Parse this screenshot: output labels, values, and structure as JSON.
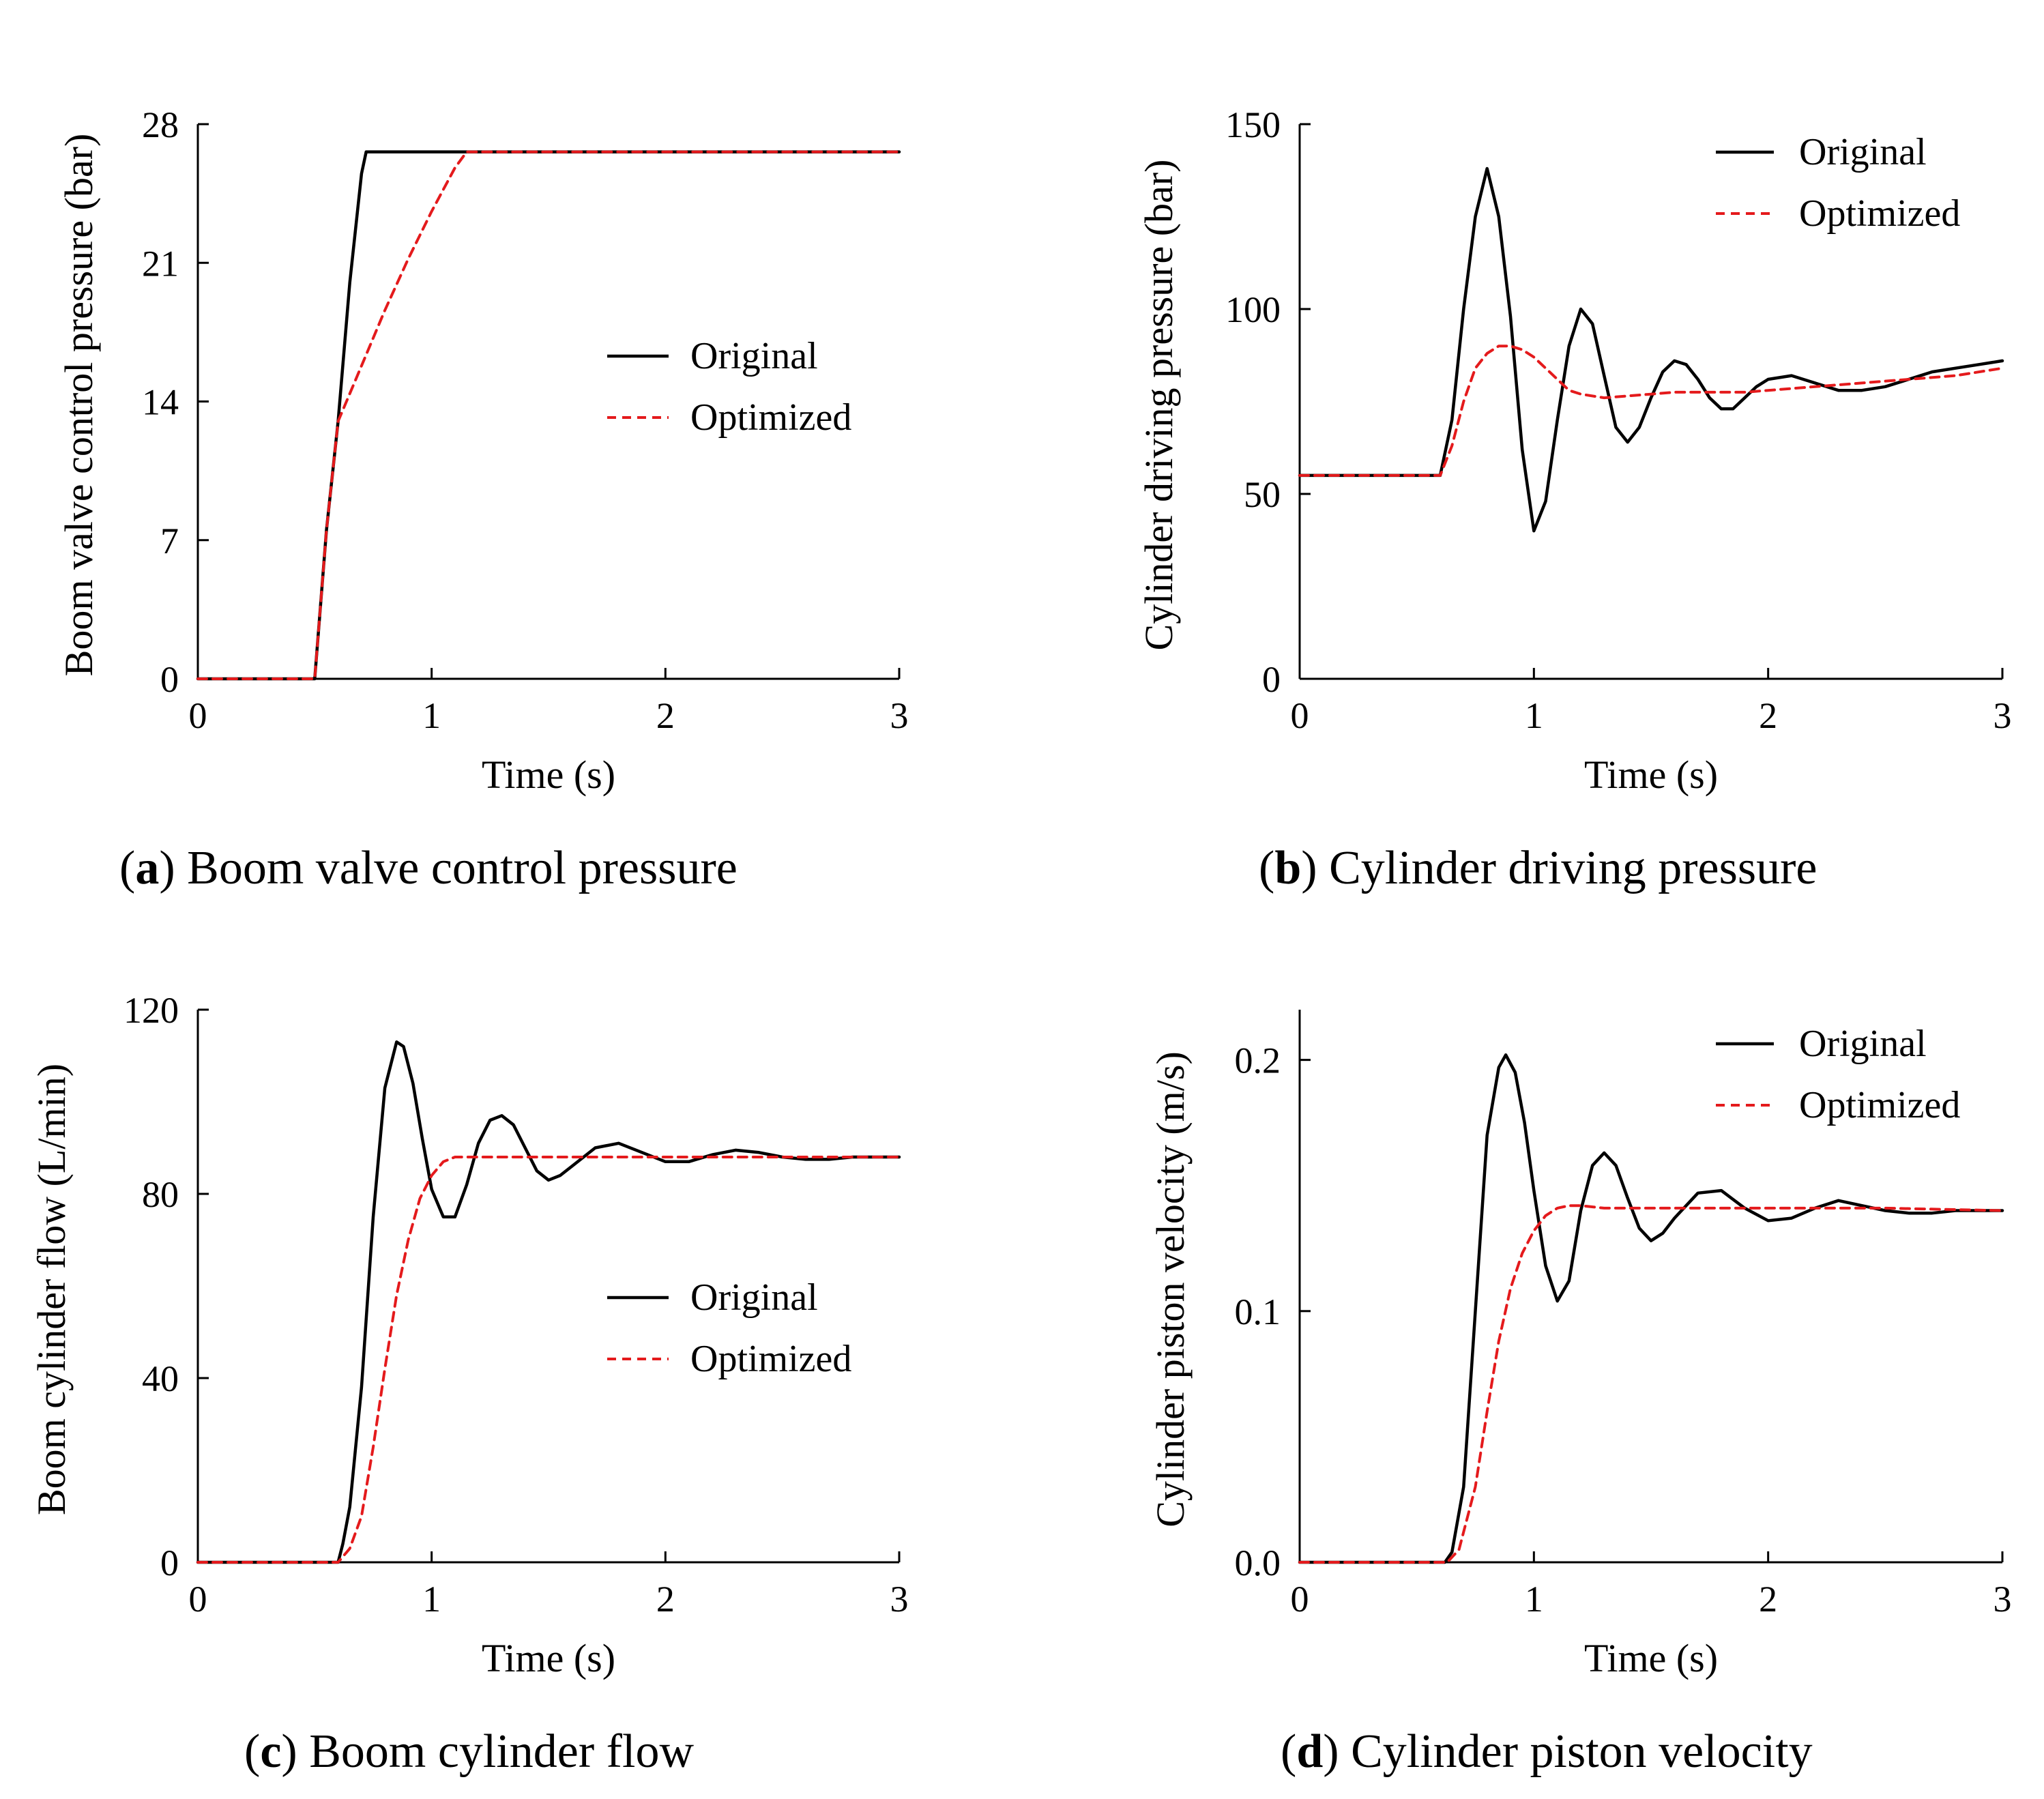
{
  "legend": {
    "original_label": "Original",
    "optimized_label": "Optimized",
    "original_color": "#000000",
    "optimized_color": "#e41a1c"
  },
  "chart_data": [
    {
      "id": "a",
      "type": "line",
      "caption_letter": "a",
      "caption_text": " Boom valve control pressure",
      "xlabel": "Time (s)",
      "ylabel": "Boom valve control pressure (bar)",
      "xlim": [
        0,
        3
      ],
      "ylim": [
        0,
        28
      ],
      "xticks": [
        0,
        1,
        2,
        3
      ],
      "yticks": [
        0,
        7,
        14,
        21,
        28
      ],
      "legend_position": "center-right",
      "series": [
        {
          "name": "Original",
          "x": [
            0,
            0.5,
            0.52,
            0.55,
            0.6,
            0.65,
            0.7,
            0.72,
            0.75,
            3
          ],
          "y": [
            0,
            0,
            3,
            7.5,
            13,
            20,
            25.5,
            26.6,
            26.6,
            26.6
          ]
        },
        {
          "name": "Optimized",
          "x": [
            0,
            0.5,
            0.52,
            0.55,
            0.6,
            0.7,
            0.8,
            0.9,
            1.0,
            1.1,
            1.15,
            1.2,
            3
          ],
          "y": [
            0,
            0,
            3,
            7.5,
            13,
            15.8,
            18.6,
            21.2,
            23.6,
            25.8,
            26.6,
            26.6,
            26.6
          ]
        }
      ]
    },
    {
      "id": "b",
      "type": "line",
      "caption_letter": "b",
      "caption_text": " Cylinder driving pressure",
      "xlabel": "Time (s)",
      "ylabel": "Cylinder driving pressure (bar)",
      "xlim": [
        0,
        3
      ],
      "ylim": [
        0,
        150
      ],
      "xticks": [
        0,
        1,
        2,
        3
      ],
      "yticks": [
        0,
        50,
        100,
        150
      ],
      "legend_position": "top-right",
      "series": [
        {
          "name": "Original",
          "x": [
            0,
            0.6,
            0.65,
            0.7,
            0.75,
            0.8,
            0.85,
            0.9,
            0.95,
            1.0,
            1.05,
            1.1,
            1.15,
            1.2,
            1.25,
            1.3,
            1.35,
            1.4,
            1.45,
            1.5,
            1.55,
            1.6,
            1.65,
            1.7,
            1.75,
            1.8,
            1.85,
            1.9,
            1.95,
            2.0,
            2.1,
            2.2,
            2.3,
            2.4,
            2.5,
            2.6,
            2.7,
            2.8,
            2.9,
            3.0
          ],
          "y": [
            55,
            55,
            70,
            100,
            125,
            138,
            125,
            98,
            62,
            40,
            48,
            70,
            90,
            100,
            96,
            82,
            68,
            64,
            68,
            76,
            83,
            86,
            85,
            81,
            76,
            73,
            73,
            76,
            79,
            81,
            82,
            80,
            78,
            78,
            79,
            81,
            83,
            84,
            85,
            86
          ]
        },
        {
          "name": "Optimized",
          "x": [
            0,
            0.6,
            0.65,
            0.7,
            0.75,
            0.8,
            0.85,
            0.9,
            0.95,
            1.0,
            1.05,
            1.1,
            1.15,
            1.2,
            1.3,
            1.4,
            1.5,
            1.6,
            1.7,
            1.8,
            1.9,
            2.0,
            2.2,
            2.4,
            2.6,
            2.8,
            3.0
          ],
          "y": [
            55,
            55,
            63,
            75,
            84,
            88,
            90,
            90,
            89,
            87,
            84,
            81,
            78,
            77,
            76,
            76.5,
            77,
            77.5,
            77.5,
            77.5,
            77.5,
            78,
            79,
            80,
            81,
            82,
            84
          ]
        }
      ]
    },
    {
      "id": "c",
      "type": "line",
      "caption_letter": "c",
      "caption_text": " Boom cylinder flow",
      "xlabel": "Time (s)",
      "ylabel": "Boom cylinder flow (L/min)",
      "xlim": [
        0,
        3
      ],
      "ylim": [
        0,
        120
      ],
      "xticks": [
        0,
        1,
        2,
        3
      ],
      "yticks": [
        0,
        40,
        80,
        120
      ],
      "legend_position": "center-right",
      "series": [
        {
          "name": "Original",
          "x": [
            0,
            0.6,
            0.62,
            0.65,
            0.7,
            0.75,
            0.8,
            0.85,
            0.88,
            0.92,
            0.96,
            1.0,
            1.05,
            1.1,
            1.15,
            1.2,
            1.25,
            1.3,
            1.35,
            1.4,
            1.45,
            1.5,
            1.55,
            1.6,
            1.7,
            1.8,
            1.9,
            2.0,
            2.1,
            2.2,
            2.3,
            2.4,
            2.5,
            2.6,
            2.7,
            2.8,
            2.9,
            3.0
          ],
          "y": [
            0,
            0,
            4,
            12,
            38,
            75,
            103,
            113,
            112,
            104,
            92,
            81,
            75,
            75,
            82,
            91,
            96,
            97,
            95,
            90,
            85,
            83,
            84,
            86,
            90,
            91,
            89,
            87,
            87,
            88.5,
            89.5,
            89,
            88,
            87.5,
            87.5,
            88,
            88,
            88
          ]
        },
        {
          "name": "Optimized",
          "x": [
            0,
            0.6,
            0.65,
            0.7,
            0.75,
            0.8,
            0.85,
            0.9,
            0.95,
            1.0,
            1.05,
            1.1,
            1.15,
            1.2,
            1.3,
            1.5,
            2.0,
            2.5,
            3.0
          ],
          "y": [
            0,
            0,
            3,
            10,
            25,
            42,
            58,
            70,
            79,
            84,
            87,
            88,
            88,
            88,
            88,
            88,
            88,
            88,
            88
          ]
        }
      ]
    },
    {
      "id": "d",
      "type": "line",
      "caption_letter": "d",
      "caption_text": " Cylinder piston velocity",
      "xlabel": "Time (s)",
      "ylabel": "Cylinder piston velocity (m/s)",
      "xlim": [
        0,
        3
      ],
      "ylim": [
        0,
        0.22
      ],
      "xticks": [
        0,
        1,
        2,
        3
      ],
      "ytick_values": [
        0.0,
        0.1,
        0.2
      ],
      "ytick_labels": [
        "0.0",
        "0.1",
        "0.2"
      ],
      "legend_position": "top-right",
      "series": [
        {
          "name": "Original",
          "x": [
            0,
            0.62,
            0.65,
            0.7,
            0.75,
            0.8,
            0.85,
            0.88,
            0.92,
            0.96,
            1.0,
            1.05,
            1.1,
            1.15,
            1.2,
            1.25,
            1.3,
            1.35,
            1.4,
            1.45,
            1.5,
            1.55,
            1.6,
            1.7,
            1.8,
            1.9,
            2.0,
            2.1,
            2.2,
            2.3,
            2.4,
            2.5,
            2.6,
            2.7,
            2.8,
            2.9,
            3.0
          ],
          "y": [
            0,
            0,
            0.004,
            0.03,
            0.1,
            0.17,
            0.197,
            0.202,
            0.195,
            0.175,
            0.148,
            0.118,
            0.104,
            0.112,
            0.14,
            0.158,
            0.163,
            0.158,
            0.145,
            0.133,
            0.128,
            0.131,
            0.137,
            0.147,
            0.148,
            0.141,
            0.136,
            0.137,
            0.141,
            0.144,
            0.142,
            0.14,
            0.139,
            0.139,
            0.14,
            0.14,
            0.14
          ]
        },
        {
          "name": "Optimized",
          "x": [
            0,
            0.63,
            0.68,
            0.75,
            0.8,
            0.85,
            0.9,
            0.95,
            1.0,
            1.05,
            1.1,
            1.15,
            1.2,
            1.3,
            1.5,
            2.0,
            2.5,
            3.0
          ],
          "y": [
            0,
            0,
            0.005,
            0.03,
            0.06,
            0.088,
            0.109,
            0.123,
            0.132,
            0.138,
            0.141,
            0.142,
            0.142,
            0.141,
            0.141,
            0.141,
            0.141,
            0.14
          ]
        }
      ]
    }
  ]
}
